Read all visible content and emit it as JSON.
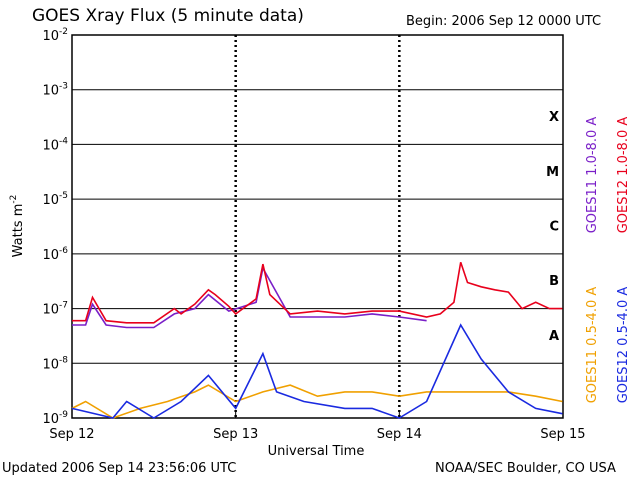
{
  "header": {
    "title": "GOES Xray Flux (5 minute data)",
    "begin": "Begin:  2006 Sep 12 0000 UTC"
  },
  "footer": {
    "updated": "Updated 2006 Sep 14 23:56:06 UTC",
    "credit": "NOAA/SEC Boulder, CO USA"
  },
  "colors": {
    "goes11_long": "#7a1fc8",
    "goes12_long": "#e8001c",
    "goes11_short": "#f0a000",
    "goes12_short": "#1a2ae0"
  },
  "chart_data": {
    "type": "line",
    "title": "GOES Xray Flux (5 minute data)",
    "xlabel": "Universal Time",
    "ylabel": "Watts m^-2",
    "yscale": "log",
    "ylim": [
      1e-09,
      0.01
    ],
    "y_tick_labels": [
      "10^-9",
      "10^-8",
      "10^-7",
      "10^-6",
      "10^-5",
      "10^-4",
      "10^-3",
      "10^-2"
    ],
    "x_tick_labels": [
      "Sep 12",
      "Sep 13",
      "Sep 14",
      "Sep 15"
    ],
    "xlim": [
      "2006-09-12 00:00",
      "2006-09-15 00:00"
    ],
    "flare_classes": [
      "A",
      "B",
      "C",
      "M",
      "X"
    ],
    "grid": "horizontal at each decade",
    "legend": [
      {
        "label": "GOES11 1.0-8.0 A",
        "color": "#7a1fc8"
      },
      {
        "label": "GOES12 1.0-8.0 A",
        "color": "#e8001c"
      },
      {
        "label": "GOES11 0.5-4.0 A",
        "color": "#f0a000"
      },
      {
        "label": "GOES12 0.5-4.0 A",
        "color": "#1a2ae0"
      }
    ],
    "series": [
      {
        "name": "GOES12 1.0-8.0 A",
        "x": [
          "2006-09-12 00:00",
          "2006-09-12 02:00",
          "2006-09-12 03:00",
          "2006-09-12 05:00",
          "2006-09-12 08:00",
          "2006-09-12 12:00",
          "2006-09-12 15:00",
          "2006-09-12 16:00",
          "2006-09-12 18:00",
          "2006-09-12 20:00",
          "2006-09-12 21:00",
          "2006-09-12 23:00",
          "2006-09-13 00:00",
          "2006-09-13 03:00",
          "2006-09-13 04:00",
          "2006-09-13 05:00",
          "2006-09-13 08:00",
          "2006-09-13 12:00",
          "2006-09-13 16:00",
          "2006-09-13 20:00",
          "2006-09-14 00:00",
          "2006-09-14 04:00",
          "2006-09-14 06:00",
          "2006-09-14 08:00",
          "2006-09-14 09:00",
          "2006-09-14 10:00",
          "2006-09-14 12:00",
          "2006-09-14 14:00",
          "2006-09-14 16:00",
          "2006-09-14 18:00",
          "2006-09-14 20:00",
          "2006-09-14 22:00",
          "2006-09-14 23:55"
        ],
        "y": [
          6e-08,
          6e-08,
          1.6e-07,
          6e-08,
          5.5e-08,
          5.5e-08,
          1e-07,
          8e-08,
          1.2e-07,
          2.2e-07,
          1.8e-07,
          1.1e-07,
          8e-08,
          1.5e-07,
          6.5e-07,
          1.8e-07,
          8e-08,
          9e-08,
          8e-08,
          9e-08,
          9e-08,
          7e-08,
          8e-08,
          1.3e-07,
          7e-07,
          3e-07,
          2.5e-07,
          2.2e-07,
          2e-07,
          1e-07,
          1.3e-07,
          1e-07,
          1e-07
        ]
      },
      {
        "name": "GOES11 1.0-8.0 A",
        "x": [
          "2006-09-12 00:00",
          "2006-09-12 02:00",
          "2006-09-12 03:00",
          "2006-09-12 05:00",
          "2006-09-12 08:00",
          "2006-09-12 12:00",
          "2006-09-12 15:00",
          "2006-09-12 18:00",
          "2006-09-12 20:00",
          "2006-09-12 23:00",
          "2006-09-13 03:00",
          "2006-09-13 04:00",
          "2006-09-13 08:00",
          "2006-09-13 12:00",
          "2006-09-13 16:00",
          "2006-09-13 20:00",
          "2006-09-14 00:00",
          "2006-09-14 04:00"
        ],
        "y": [
          5e-08,
          5e-08,
          1.2e-07,
          5e-08,
          4.5e-08,
          4.5e-08,
          8e-08,
          1e-07,
          1.8e-07,
          9e-08,
          1.3e-07,
          5.5e-07,
          7e-08,
          7e-08,
          7e-08,
          8e-08,
          7e-08,
          6e-08
        ]
      },
      {
        "name": "GOES11 0.5-4.0 A",
        "x": [
          "2006-09-12 00:00",
          "2006-09-12 02:00",
          "2006-09-12 06:00",
          "2006-09-12 10:00",
          "2006-09-12 14:00",
          "2006-09-12 18:00",
          "2006-09-12 20:00",
          "2006-09-13 00:00",
          "2006-09-13 04:00",
          "2006-09-13 08:00",
          "2006-09-13 12:00",
          "2006-09-13 16:00",
          "2006-09-13 20:00",
          "2006-09-14 00:00",
          "2006-09-14 04:00",
          "2006-09-14 08:00",
          "2006-09-14 12:00",
          "2006-09-14 16:00",
          "2006-09-14 20:00",
          "2006-09-14 23:55"
        ],
        "y": [
          1.5e-09,
          2e-09,
          1e-09,
          1.5e-09,
          2e-09,
          3e-09,
          4e-09,
          2e-09,
          3e-09,
          4e-09,
          2.5e-09,
          3e-09,
          3e-09,
          2.5e-09,
          3e-09,
          3e-09,
          3e-09,
          3e-09,
          2.5e-09,
          2e-09
        ]
      },
      {
        "name": "GOES12 0.5-4.0 A",
        "x": [
          "2006-09-12 00:00",
          "2006-09-12 06:00",
          "2006-09-12 08:00",
          "2006-09-12 12:00",
          "2006-09-12 16:00",
          "2006-09-12 20:00",
          "2006-09-13 00:00",
          "2006-09-13 04:00",
          "2006-09-13 06:00",
          "2006-09-13 10:00",
          "2006-09-13 16:00",
          "2006-09-13 20:00",
          "2006-09-14 00:00",
          "2006-09-14 04:00",
          "2006-09-14 09:00",
          "2006-09-14 12:00",
          "2006-09-14 16:00",
          "2006-09-14 20:00",
          "2006-09-14 23:55"
        ],
        "y": [
          1.5e-09,
          1e-09,
          2e-09,
          1e-09,
          2e-09,
          6e-09,
          1.5e-09,
          1.5e-08,
          3e-09,
          2e-09,
          1.5e-09,
          1.5e-09,
          1e-09,
          2e-09,
          5e-08,
          1.2e-08,
          3e-09,
          1.5e-09,
          1.2e-09
        ]
      }
    ]
  }
}
